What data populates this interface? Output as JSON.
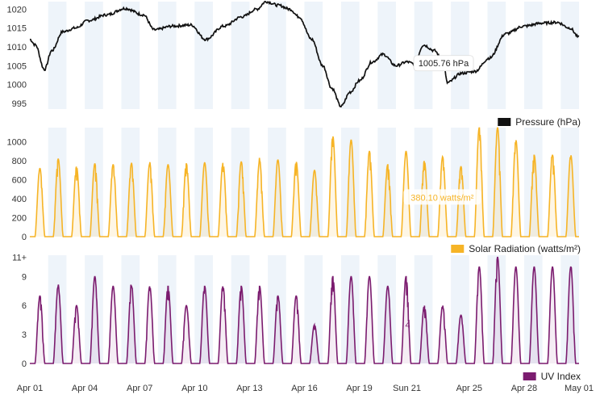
{
  "chart_data": [
    {
      "type": "line",
      "series": [
        {
          "name": "Pressure (hPa)",
          "color": "#111111"
        }
      ],
      "ylim": [
        993.5,
        1022
      ],
      "yticks": [
        995,
        1000,
        1005,
        1010,
        1015,
        1020
      ],
      "x_start": "Apr 01",
      "x_end": "May 01",
      "keypoints": [
        [
          0,
          1012
        ],
        [
          0.3,
          1010.5
        ],
        [
          0.8,
          1004
        ],
        [
          1.2,
          1009
        ],
        [
          1.8,
          1014
        ],
        [
          2.5,
          1015
        ],
        [
          3.2,
          1017
        ],
        [
          4.2,
          1018.5
        ],
        [
          5.2,
          1020.2
        ],
        [
          6.2,
          1018.5
        ],
        [
          6.8,
          1014.5
        ],
        [
          7.8,
          1015.5
        ],
        [
          8.8,
          1015.8
        ],
        [
          9.6,
          1012
        ],
        [
          10.6,
          1015.5
        ],
        [
          11.6,
          1018
        ],
        [
          12.4,
          1020
        ],
        [
          12.9,
          1022
        ],
        [
          13.6,
          1021
        ],
        [
          14.2,
          1020
        ],
        [
          14.7,
          1018
        ],
        [
          15.4,
          1012
        ],
        [
          16.0,
          1005
        ],
        [
          16.5,
          999
        ],
        [
          17.0,
          994.2
        ],
        [
          17.5,
          998
        ],
        [
          18.0,
          1001
        ],
        [
          18.7,
          1006
        ],
        [
          19.3,
          1008
        ],
        [
          20.0,
          1005
        ],
        [
          20.6,
          1006
        ],
        [
          21.0,
          1005.5
        ],
        [
          21.5,
          1010.5
        ],
        [
          22.1,
          1009
        ],
        [
          22.6,
          1005.8
        ],
        [
          22.8,
          1000.5
        ],
        [
          23.6,
          1003
        ],
        [
          24.3,
          1003.5
        ],
        [
          25.1,
          1007
        ],
        [
          26.0,
          1013.5
        ],
        [
          27.0,
          1015.5
        ],
        [
          28.0,
          1016.3
        ],
        [
          28.8,
          1016.5
        ],
        [
          29.5,
          1015
        ],
        [
          30.0,
          1012.5
        ]
      ],
      "tooltip": {
        "text": "1005.76 hPa",
        "day": 22.6,
        "value": 1005.76
      }
    },
    {
      "type": "area",
      "series": [
        {
          "name": "Solar Radiation (watts/m²)",
          "color": "#f6b426"
        }
      ],
      "ylim": [
        0,
        1150
      ],
      "yticks": [
        0,
        200,
        400,
        600,
        800,
        1000
      ],
      "daily_peaks": [
        720,
        820,
        740,
        770,
        760,
        770,
        770,
        760,
        770,
        780,
        780,
        790,
        800,
        810,
        790,
        700,
        1060,
        1020,
        900,
        760,
        900,
        800,
        840,
        740,
        1150,
        1150,
        1020,
        860,
        860,
        860
      ],
      "tooltip": {
        "text": "380.10 watts/m²",
        "day": 20.5,
        "value": 380.1
      }
    },
    {
      "type": "area",
      "series": [
        {
          "name": "UV Index",
          "color": "#7b1c6f"
        }
      ],
      "ylim": [
        0,
        11.2
      ],
      "yticks": [
        "0",
        "3",
        "6",
        "9",
        "11+"
      ],
      "ytick_values": [
        0,
        3,
        6,
        9,
        11
      ],
      "daily_peaks": [
        7,
        8,
        6,
        9,
        8,
        8,
        8,
        8,
        6,
        8,
        8,
        8,
        8,
        7,
        7,
        4,
        9,
        9,
        9,
        8,
        9,
        6,
        6,
        5,
        10,
        11,
        10,
        10,
        10,
        10
      ],
      "tooltip": {
        "text": "4",
        "day": 20.2,
        "value": 4
      }
    }
  ],
  "xaxis": {
    "labels": [
      "Apr 01",
      "Apr 04",
      "Apr 07",
      "Apr 10",
      "Apr 13",
      "Apr 16",
      "Apr 19",
      "Sun 21",
      "Apr 25",
      "Apr 28",
      "May 01"
    ],
    "days": [
      0,
      3,
      6,
      9,
      12,
      15,
      18,
      20.6,
      24,
      27,
      30
    ]
  }
}
